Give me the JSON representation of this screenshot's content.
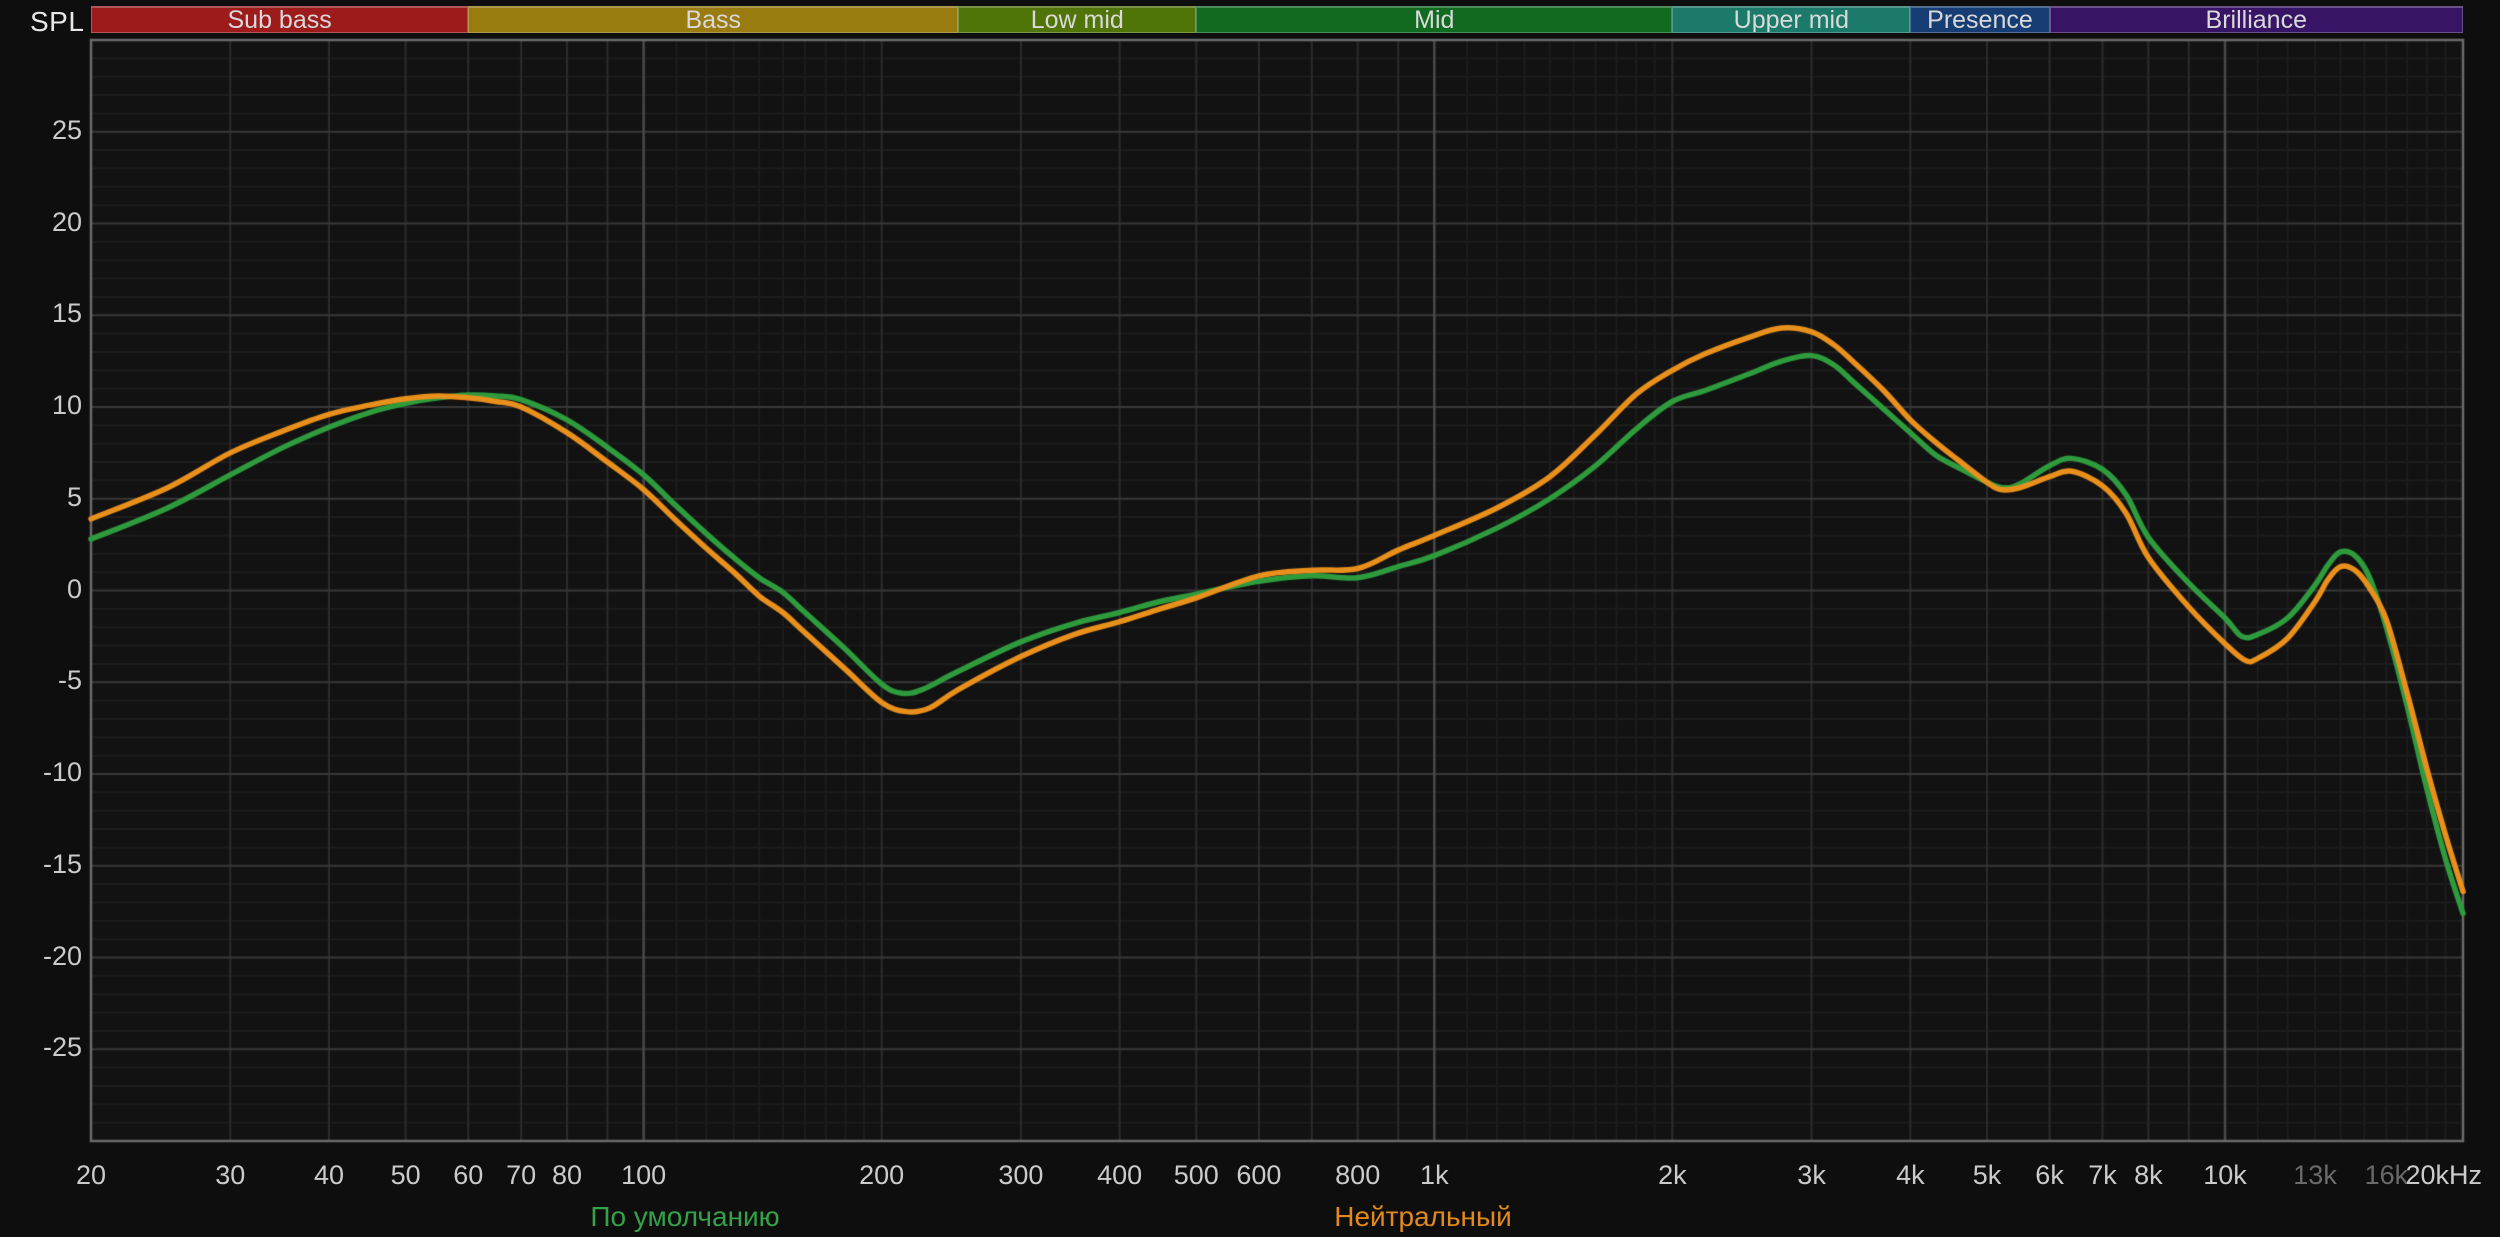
{
  "header": {
    "spl_label": "SPL"
  },
  "legend": {
    "items": [
      {
        "label": "По умолчанию",
        "color": "#35A148",
        "series": "default"
      },
      {
        "label": "Нейтральный",
        "color": "#E1891B",
        "series": "neutral"
      }
    ]
  },
  "chart_data": {
    "type": "line",
    "title": "",
    "xlabel": "",
    "ylabel": "SPL",
    "x_axis": {
      "scale": "log",
      "min_hz": 20,
      "max_hz": 20000,
      "ticks": [
        {
          "f": 20,
          "label": "20"
        },
        {
          "f": 30,
          "label": "30"
        },
        {
          "f": 40,
          "label": "40"
        },
        {
          "f": 50,
          "label": "50"
        },
        {
          "f": 60,
          "label": "60"
        },
        {
          "f": 70,
          "label": "70"
        },
        {
          "f": 80,
          "label": "80"
        },
        {
          "f": 100,
          "label": "100"
        },
        {
          "f": 200,
          "label": "200"
        },
        {
          "f": 300,
          "label": "300"
        },
        {
          "f": 400,
          "label": "400"
        },
        {
          "f": 500,
          "label": "500"
        },
        {
          "f": 600,
          "label": "600"
        },
        {
          "f": 800,
          "label": "800"
        },
        {
          "f": 1000,
          "label": "1k"
        },
        {
          "f": 2000,
          "label": "2k"
        },
        {
          "f": 3000,
          "label": "3k"
        },
        {
          "f": 4000,
          "label": "4k"
        },
        {
          "f": 5000,
          "label": "5k"
        },
        {
          "f": 6000,
          "label": "6k"
        },
        {
          "f": 7000,
          "label": "7k"
        },
        {
          "f": 8000,
          "label": "8k"
        },
        {
          "f": 10000,
          "label": "10k"
        },
        {
          "f": 13000,
          "label": "13k",
          "dim": true
        },
        {
          "f": 16000,
          "label": "16k",
          "dim": true
        },
        {
          "f": 20000,
          "label": "20kHz"
        }
      ],
      "grid_decades": [
        100,
        1000,
        10000
      ],
      "grid_steps": [
        30,
        40,
        50,
        60,
        70,
        80,
        90,
        200,
        300,
        400,
        500,
        600,
        700,
        800,
        900,
        2000,
        3000,
        4000,
        5000,
        6000,
        7000,
        8000,
        9000
      ],
      "grid_subminor": [
        110,
        120,
        130,
        140,
        150,
        160,
        170,
        180,
        190,
        1100,
        1200,
        1300,
        1400,
        1500,
        1600,
        1700,
        1800,
        1900,
        11000,
        12000,
        13000,
        14000,
        15000,
        16000,
        17000,
        18000,
        19000
      ]
    },
    "y_axis": {
      "unit": "dB",
      "min": -30,
      "max": 30,
      "major_step": 5,
      "minor_step": 1,
      "tick_labels": [
        25,
        20,
        15,
        10,
        5,
        0,
        -5,
        -10,
        -15,
        -20,
        -25
      ]
    },
    "bands": [
      {
        "label": "Sub bass",
        "f_lo": 20,
        "f_hi": 60,
        "color": "#9E1B1B"
      },
      {
        "label": "Bass",
        "f_lo": 60,
        "f_hi": 250,
        "color": "#9A7B10"
      },
      {
        "label": "Low mid",
        "f_lo": 250,
        "f_hi": 500,
        "color": "#507408"
      },
      {
        "label": "Mid",
        "f_lo": 500,
        "f_hi": 2000,
        "color": "#106B21"
      },
      {
        "label": "Upper mid",
        "f_lo": 2000,
        "f_hi": 4000,
        "color": "#1B7A6A"
      },
      {
        "label": "Presence",
        "f_lo": 4000,
        "f_hi": 6000,
        "color": "#173D75"
      },
      {
        "label": "Brilliance",
        "f_lo": 6000,
        "f_hi": 20000,
        "color": "#371465"
      }
    ],
    "series": [
      {
        "name": "default",
        "label": "По умолчанию",
        "color": "#2E9B3D",
        "points": [
          [
            20,
            2.8
          ],
          [
            25,
            4.5
          ],
          [
            30,
            6.3
          ],
          [
            35,
            7.8
          ],
          [
            40,
            8.9
          ],
          [
            45,
            9.7
          ],
          [
            50,
            10.2
          ],
          [
            55,
            10.5
          ],
          [
            60,
            10.65
          ],
          [
            65,
            10.6
          ],
          [
            70,
            10.4
          ],
          [
            80,
            9.3
          ],
          [
            90,
            7.8
          ],
          [
            100,
            6.3
          ],
          [
            110,
            4.6
          ],
          [
            120,
            3.1
          ],
          [
            130,
            1.8
          ],
          [
            140,
            0.7
          ],
          [
            150,
            -0.1
          ],
          [
            160,
            -1.2
          ],
          [
            180,
            -3.2
          ],
          [
            200,
            -5.1
          ],
          [
            212,
            -5.6
          ],
          [
            225,
            -5.4
          ],
          [
            250,
            -4.4
          ],
          [
            300,
            -2.8
          ],
          [
            350,
            -1.8
          ],
          [
            400,
            -1.2
          ],
          [
            450,
            -0.6
          ],
          [
            500,
            -0.2
          ],
          [
            600,
            0.5
          ],
          [
            700,
            0.8
          ],
          [
            800,
            0.7
          ],
          [
            900,
            1.3
          ],
          [
            1000,
            1.9
          ],
          [
            1200,
            3.4
          ],
          [
            1400,
            5.0
          ],
          [
            1600,
            6.8
          ],
          [
            1800,
            8.8
          ],
          [
            2000,
            10.3
          ],
          [
            2200,
            10.9
          ],
          [
            2500,
            11.8
          ],
          [
            2750,
            12.5
          ],
          [
            3000,
            12.8
          ],
          [
            3200,
            12.3
          ],
          [
            3400,
            11.3
          ],
          [
            3700,
            9.9
          ],
          [
            4000,
            8.6
          ],
          [
            4300,
            7.4
          ],
          [
            4600,
            6.7
          ],
          [
            5000,
            5.9
          ],
          [
            5250,
            5.6
          ],
          [
            5500,
            5.8
          ],
          [
            6000,
            6.8
          ],
          [
            6400,
            7.2
          ],
          [
            7000,
            6.6
          ],
          [
            7500,
            5.2
          ],
          [
            8000,
            2.9
          ],
          [
            9000,
            0.4
          ],
          [
            10000,
            -1.5
          ],
          [
            10500,
            -2.5
          ],
          [
            11000,
            -2.4
          ],
          [
            12000,
            -1.5
          ],
          [
            13000,
            0.3
          ],
          [
            13500,
            1.4
          ],
          [
            14000,
            2.1
          ],
          [
            14600,
            1.9
          ],
          [
            15200,
            0.8
          ],
          [
            16000,
            -2.0
          ],
          [
            17000,
            -6.3
          ],
          [
            18000,
            -10.8
          ],
          [
            19000,
            -14.6
          ],
          [
            20000,
            -17.6
          ]
        ]
      },
      {
        "name": "neutral",
        "label": "Нейтральный",
        "color": "#E9901C",
        "points": [
          [
            20,
            3.9
          ],
          [
            25,
            5.6
          ],
          [
            30,
            7.5
          ],
          [
            35,
            8.7
          ],
          [
            40,
            9.6
          ],
          [
            45,
            10.1
          ],
          [
            50,
            10.45
          ],
          [
            55,
            10.6
          ],
          [
            60,
            10.5
          ],
          [
            65,
            10.3
          ],
          [
            70,
            10.0
          ],
          [
            80,
            8.6
          ],
          [
            90,
            7.0
          ],
          [
            100,
            5.5
          ],
          [
            110,
            3.8
          ],
          [
            120,
            2.3
          ],
          [
            130,
            1.0
          ],
          [
            140,
            -0.3
          ],
          [
            150,
            -1.2
          ],
          [
            160,
            -2.3
          ],
          [
            180,
            -4.3
          ],
          [
            200,
            -6.1
          ],
          [
            215,
            -6.6
          ],
          [
            230,
            -6.4
          ],
          [
            250,
            -5.4
          ],
          [
            300,
            -3.6
          ],
          [
            350,
            -2.4
          ],
          [
            400,
            -1.7
          ],
          [
            450,
            -1.0
          ],
          [
            500,
            -0.4
          ],
          [
            600,
            0.8
          ],
          [
            700,
            1.1
          ],
          [
            800,
            1.2
          ],
          [
            900,
            2.2
          ],
          [
            1000,
            3.0
          ],
          [
            1200,
            4.5
          ],
          [
            1400,
            6.2
          ],
          [
            1600,
            8.5
          ],
          [
            1800,
            10.7
          ],
          [
            2000,
            12.0
          ],
          [
            2200,
            12.9
          ],
          [
            2500,
            13.8
          ],
          [
            2750,
            14.3
          ],
          [
            3000,
            14.1
          ],
          [
            3200,
            13.4
          ],
          [
            3400,
            12.4
          ],
          [
            3700,
            10.9
          ],
          [
            4000,
            9.3
          ],
          [
            4300,
            8.1
          ],
          [
            4600,
            7.1
          ],
          [
            5000,
            5.9
          ],
          [
            5200,
            5.5
          ],
          [
            5500,
            5.6
          ],
          [
            6000,
            6.2
          ],
          [
            6400,
            6.5
          ],
          [
            7000,
            5.7
          ],
          [
            7500,
            4.2
          ],
          [
            8000,
            1.8
          ],
          [
            9000,
            -0.9
          ],
          [
            10000,
            -2.9
          ],
          [
            10600,
            -3.8
          ],
          [
            11000,
            -3.7
          ],
          [
            12000,
            -2.6
          ],
          [
            13000,
            -0.6
          ],
          [
            13500,
            0.6
          ],
          [
            14000,
            1.3
          ],
          [
            14600,
            1.1
          ],
          [
            15200,
            0.2
          ],
          [
            16000,
            -1.6
          ],
          [
            17000,
            -5.6
          ],
          [
            18000,
            -9.7
          ],
          [
            19000,
            -13.3
          ],
          [
            20000,
            -16.4
          ]
        ]
      }
    ],
    "layout": {
      "grid": true,
      "legend_position": "bottom"
    },
    "colors": {
      "background": "#0e0e0e",
      "plot_background": "#121212",
      "border": "#6b6b6b",
      "grid_major": "#383838",
      "grid_minor": "#1d1d1d",
      "grid_step": "#2c2c2c",
      "grid_decade": "#4a4a4a",
      "tick_text": "#cbcbcb",
      "tick_text_dim": "#6a6a6a"
    }
  }
}
